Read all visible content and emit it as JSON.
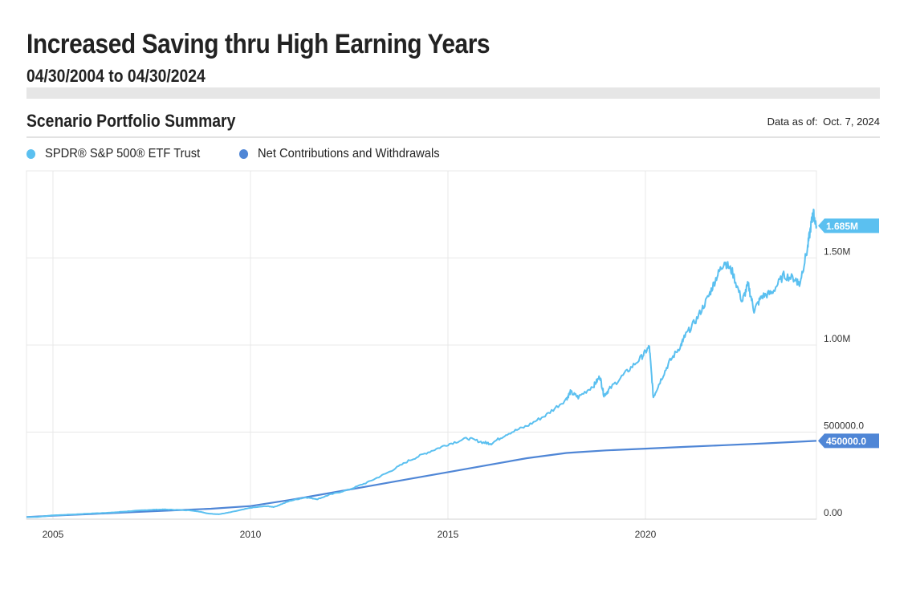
{
  "header": {
    "title": "Increased Saving thru High Earning Years",
    "subtitle": "04/30/2004 to 04/30/2024"
  },
  "section": {
    "title": "Scenario Portfolio Summary",
    "as_of_label": "Data as of:",
    "as_of_value": "Oct. 7, 2024"
  },
  "colors": {
    "spy": "#5bc0f0",
    "contrib": "#4f86d6",
    "grid": "#e8e8e8",
    "axis_text": "#333333"
  },
  "chart_data": {
    "type": "line",
    "x_range": [
      2004.33,
      2024.33
    ],
    "ylim": [
      0,
      2000000
    ],
    "x_ticks": [
      {
        "value": 2005,
        "label": "2005"
      },
      {
        "value": 2010,
        "label": "2010"
      },
      {
        "value": 2015,
        "label": "2015"
      },
      {
        "value": 2020,
        "label": "2020"
      }
    ],
    "y_ticks": [
      {
        "value": 0,
        "label": "0.00"
      },
      {
        "value": 500000,
        "label": "500000.0"
      },
      {
        "value": 1000000,
        "label": "1.00M"
      },
      {
        "value": 1500000,
        "label": "1.50M"
      }
    ],
    "grid": true,
    "legend_position": "top-left",
    "series": [
      {
        "name": "SPDR® S&P 500® ETF Trust",
        "color": "#5bc0f0",
        "end_label": "1.685M",
        "points": [
          [
            2004.33,
            12000
          ],
          [
            2004.6,
            13000
          ],
          [
            2005.0,
            22000
          ],
          [
            2005.5,
            27000
          ],
          [
            2006.0,
            33000
          ],
          [
            2006.5,
            38000
          ],
          [
            2007.0,
            47000
          ],
          [
            2007.5,
            54000
          ],
          [
            2007.8,
            56000
          ],
          [
            2008.2,
            53000
          ],
          [
            2008.5,
            50000
          ],
          [
            2008.75,
            42000
          ],
          [
            2008.9,
            33000
          ],
          [
            2009.2,
            28000
          ],
          [
            2009.5,
            40000
          ],
          [
            2010.0,
            65000
          ],
          [
            2010.4,
            75000
          ],
          [
            2010.6,
            70000
          ],
          [
            2011.0,
            105000
          ],
          [
            2011.4,
            125000
          ],
          [
            2011.7,
            115000
          ],
          [
            2012.0,
            140000
          ],
          [
            2012.5,
            170000
          ],
          [
            2013.0,
            215000
          ],
          [
            2013.5,
            270000
          ],
          [
            2014.0,
            335000
          ],
          [
            2014.5,
            385000
          ],
          [
            2015.0,
            430000
          ],
          [
            2015.5,
            465000
          ],
          [
            2015.9,
            440000
          ],
          [
            2016.1,
            435000
          ],
          [
            2016.5,
            490000
          ],
          [
            2017.0,
            535000
          ],
          [
            2017.5,
            600000
          ],
          [
            2018.0,
            690000
          ],
          [
            2018.1,
            730000
          ],
          [
            2018.3,
            700000
          ],
          [
            2018.7,
            770000
          ],
          [
            2018.85,
            820000
          ],
          [
            2018.95,
            710000
          ],
          [
            2019.1,
            750000
          ],
          [
            2019.5,
            840000
          ],
          [
            2019.9,
            930000
          ],
          [
            2020.1,
            990000
          ],
          [
            2020.2,
            700000
          ],
          [
            2020.35,
            780000
          ],
          [
            2020.6,
            900000
          ],
          [
            2020.9,
            1000000
          ],
          [
            2021.0,
            1050000
          ],
          [
            2021.3,
            1150000
          ],
          [
            2021.6,
            1280000
          ],
          [
            2021.8,
            1390000
          ],
          [
            2022.0,
            1480000
          ],
          [
            2022.2,
            1420000
          ],
          [
            2022.45,
            1250000
          ],
          [
            2022.6,
            1350000
          ],
          [
            2022.75,
            1200000
          ],
          [
            2022.95,
            1280000
          ],
          [
            2023.2,
            1300000
          ],
          [
            2023.5,
            1400000
          ],
          [
            2023.8,
            1380000
          ],
          [
            2023.9,
            1350000
          ],
          [
            2024.1,
            1550000
          ],
          [
            2024.2,
            1700000
          ],
          [
            2024.25,
            1760000
          ],
          [
            2024.33,
            1685000
          ]
        ]
      },
      {
        "name": "Net Contributions and Withdrawals",
        "color": "#4f86d6",
        "end_label": "450000.0",
        "points": [
          [
            2004.33,
            12000
          ],
          [
            2005.0,
            20000
          ],
          [
            2006.0,
            30000
          ],
          [
            2007.0,
            40000
          ],
          [
            2008.0,
            50000
          ],
          [
            2009.0,
            60000
          ],
          [
            2010.0,
            75000
          ],
          [
            2011.0,
            110000
          ],
          [
            2012.0,
            150000
          ],
          [
            2013.0,
            190000
          ],
          [
            2014.0,
            230000
          ],
          [
            2015.0,
            270000
          ],
          [
            2016.0,
            310000
          ],
          [
            2017.0,
            350000
          ],
          [
            2018.0,
            380000
          ],
          [
            2018.3,
            385000
          ],
          [
            2019.0,
            395000
          ],
          [
            2020.0,
            405000
          ],
          [
            2021.0,
            415000
          ],
          [
            2022.0,
            425000
          ],
          [
            2023.0,
            435000
          ],
          [
            2024.33,
            450000
          ]
        ]
      }
    ]
  }
}
